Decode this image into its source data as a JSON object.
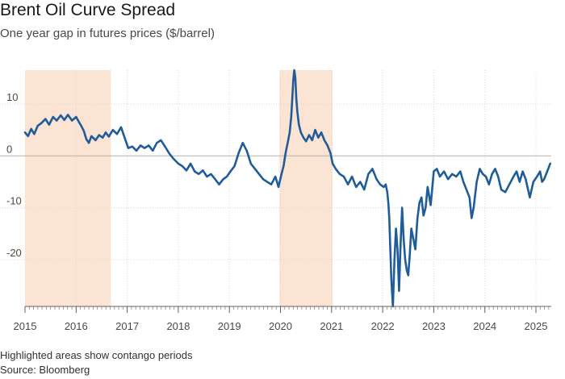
{
  "chart_data": {
    "type": "line",
    "title": "Brent Oil Curve Spread",
    "subtitle": "One year gap in futures prices ($/barrel)",
    "xlabel": "",
    "ylabel": "",
    "xlim": [
      2015.0,
      2025.3
    ],
    "ylim": [
      -29,
      16.5
    ],
    "x_ticks": [
      {
        "value": 2015,
        "label": "2015"
      },
      {
        "value": 2016,
        "label": "2016"
      },
      {
        "value": 2017,
        "label": "2017"
      },
      {
        "value": 2018,
        "label": "2018"
      },
      {
        "value": 2019,
        "label": "2019"
      },
      {
        "value": 2020,
        "label": "2020"
      },
      {
        "value": 2021,
        "label": "2021"
      },
      {
        "value": 2022,
        "label": "2022"
      },
      {
        "value": 2023,
        "label": "2023"
      },
      {
        "value": 2024,
        "label": "2024"
      },
      {
        "value": 2025,
        "label": "2025"
      }
    ],
    "y_ticks": [
      {
        "value": 10,
        "label": "10"
      },
      {
        "value": 0,
        "label": "0"
      },
      {
        "value": -10,
        "label": "-10"
      },
      {
        "value": -20,
        "label": "-20"
      }
    ],
    "grid": true,
    "highlight_periods": [
      {
        "start": 2015.0,
        "end": 2016.68
      },
      {
        "start": 2019.98,
        "end": 2021.02
      }
    ],
    "series": [
      {
        "name": "",
        "color": "#1f5c99",
        "x": [
          2015.0,
          2015.06,
          2015.12,
          2015.18,
          2015.25,
          2015.32,
          2015.4,
          2015.47,
          2015.55,
          2015.62,
          2015.7,
          2015.77,
          2015.84,
          2015.92,
          2016.0,
          2016.05,
          2016.1,
          2016.15,
          2016.2,
          2016.25,
          2016.3,
          2016.38,
          2016.45,
          2016.52,
          2016.58,
          2016.64,
          2016.72,
          2016.8,
          2016.88,
          2016.95,
          2017.02,
          2017.1,
          2017.18,
          2017.26,
          2017.34,
          2017.42,
          2017.5,
          2017.58,
          2017.66,
          2017.74,
          2017.82,
          2017.9,
          2018.0,
          2018.08,
          2018.16,
          2018.24,
          2018.32,
          2018.4,
          2018.48,
          2018.56,
          2018.64,
          2018.72,
          2018.8,
          2018.88,
          2018.95,
          2019.02,
          2019.1,
          2019.18,
          2019.26,
          2019.34,
          2019.42,
          2019.5,
          2019.58,
          2019.66,
          2019.74,
          2019.82,
          2019.9,
          2019.96,
          2020.02,
          2020.06,
          2020.1,
          2020.14,
          2020.18,
          2020.21,
          2020.23,
          2020.25,
          2020.27,
          2020.29,
          2020.31,
          2020.33,
          2020.36,
          2020.4,
          2020.45,
          2020.5,
          2020.56,
          2020.62,
          2020.68,
          2020.74,
          2020.8,
          2020.86,
          2020.92,
          2020.98,
          2021.02,
          2021.08,
          2021.16,
          2021.24,
          2021.32,
          2021.4,
          2021.48,
          2021.56,
          2021.64,
          2021.72,
          2021.8,
          2021.88,
          2021.95,
          2022.02,
          2022.06,
          2022.09,
          2022.11,
          2022.13,
          2022.15,
          2022.17,
          2022.2,
          2022.23,
          2022.26,
          2022.29,
          2022.32,
          2022.35,
          2022.38,
          2022.41,
          2022.44,
          2022.47,
          2022.5,
          2022.53,
          2022.56,
          2022.6,
          2022.64,
          2022.68,
          2022.72,
          2022.76,
          2022.8,
          2022.84,
          2022.88,
          2022.94,
          2023.0,
          2023.06,
          2023.12,
          2023.2,
          2023.28,
          2023.36,
          2023.44,
          2023.52,
          2023.58,
          2023.64,
          2023.7,
          2023.74,
          2023.78,
          2023.84,
          2023.9,
          2023.96,
          2024.02,
          2024.08,
          2024.14,
          2024.2,
          2024.26,
          2024.32,
          2024.4,
          2024.48,
          2024.56,
          2024.62,
          2024.68,
          2024.74,
          2024.8,
          2024.88,
          2024.95,
          2025.02,
          2025.08,
          2025.12,
          2025.16,
          2025.2,
          2025.24,
          2025.28
        ],
        "values": [
          4.5,
          3.8,
          5.2,
          4.2,
          5.8,
          6.3,
          7.1,
          6.0,
          7.5,
          6.8,
          7.8,
          6.9,
          7.9,
          6.8,
          7.5,
          6.6,
          5.8,
          4.8,
          3.2,
          2.5,
          3.8,
          3.0,
          4.0,
          3.5,
          4.5,
          3.7,
          5.0,
          4.2,
          5.5,
          3.5,
          1.5,
          1.8,
          1.0,
          2.0,
          1.5,
          2.0,
          1.0,
          2.5,
          3.0,
          1.8,
          0.5,
          -0.5,
          -1.5,
          -2.0,
          -2.8,
          -1.5,
          -3.0,
          -3.5,
          -2.8,
          -4.0,
          -3.5,
          -4.5,
          -5.5,
          -4.5,
          -4.0,
          -3.0,
          -2.0,
          0.5,
          2.5,
          1.0,
          -1.5,
          -2.5,
          -3.5,
          -4.5,
          -5.0,
          -5.5,
          -4.0,
          -6.0,
          -3.5,
          -2.0,
          0.5,
          2.5,
          4.5,
          7.5,
          11.0,
          14.5,
          16.5,
          15.0,
          11.0,
          8.5,
          6.0,
          4.5,
          3.5,
          2.8,
          4.0,
          3.0,
          5.0,
          3.5,
          4.5,
          3.0,
          2.0,
          0.5,
          -1.5,
          -2.5,
          -3.5,
          -4.0,
          -5.5,
          -4.0,
          -6.0,
          -5.0,
          -6.5,
          -3.5,
          -2.5,
          -4.5,
          -5.5,
          -6.0,
          -5.5,
          -7.0,
          -9.0,
          -12.0,
          -18.0,
          -24.0,
          -29.0,
          -20.0,
          -14.0,
          -18.0,
          -26.0,
          -17.0,
          -10.0,
          -16.0,
          -20.0,
          -22.0,
          -23.0,
          -19.0,
          -14.0,
          -16.0,
          -18.0,
          -12.0,
          -9.0,
          -8.0,
          -11.5,
          -10.0,
          -6.0,
          -9.5,
          -3.0,
          -2.5,
          -4.0,
          -3.0,
          -4.5,
          -3.5,
          -4.0,
          -3.0,
          -5.0,
          -6.5,
          -8.0,
          -12.0,
          -10.0,
          -5.0,
          -2.5,
          -3.5,
          -4.0,
          -5.5,
          -3.5,
          -2.5,
          -4.0,
          -6.5,
          -7.0,
          -5.5,
          -4.0,
          -3.0,
          -5.0,
          -3.0,
          -4.5,
          -8.0,
          -5.0,
          -4.0,
          -3.0,
          -5.0,
          -4.5,
          -3.5,
          -2.5,
          -1.5
        ]
      }
    ]
  },
  "footnote": "Highlighted areas show contango periods",
  "source": "Source: Bloomberg"
}
